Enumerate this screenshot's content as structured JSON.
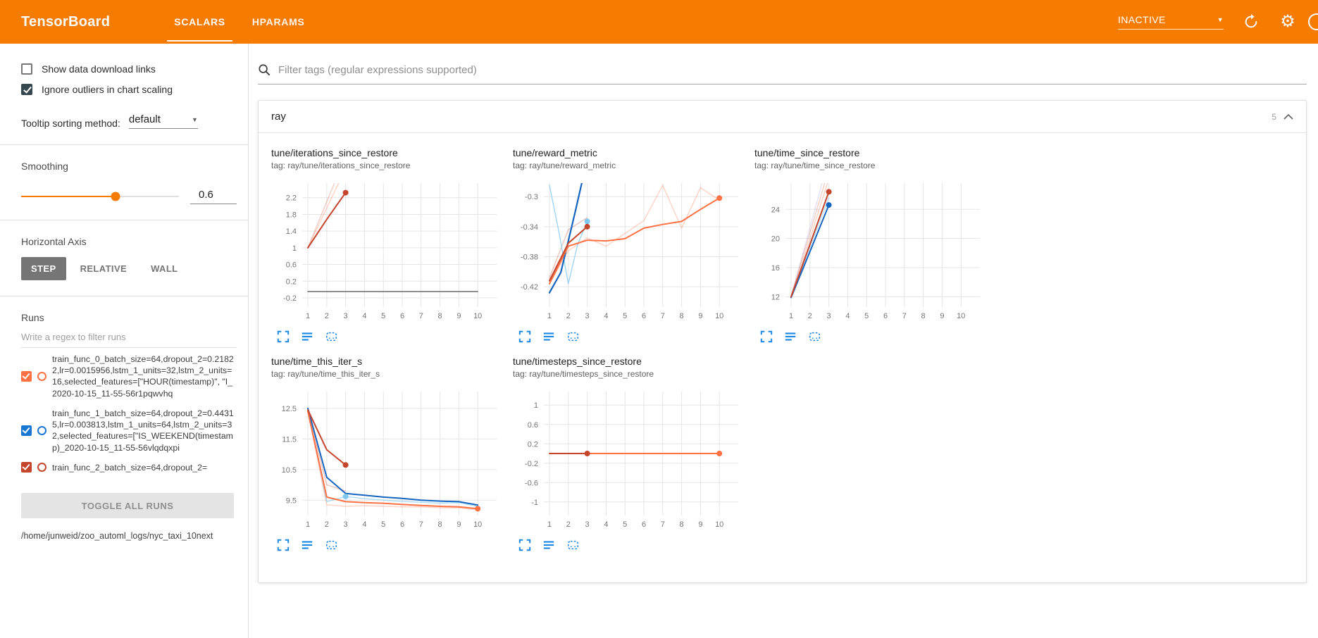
{
  "header": {
    "brand": "TensorBoard",
    "tabs": [
      {
        "label": "SCALARS",
        "active": true
      },
      {
        "label": "HPARAMS",
        "active": false
      }
    ],
    "status": "INACTIVE"
  },
  "icons": {
    "caret_down": "▼",
    "settings": "⚙",
    "refresh": "circular-arrow",
    "help": "circle-outline",
    "search": "magnifier",
    "collapse": "chevron-up",
    "chart_expand": "fullscreen-corners",
    "chart_runs": "list-lines",
    "chart_fit": "dashed-box"
  },
  "sidebar": {
    "checkboxes": [
      {
        "label": "Show data download links",
        "checked": false
      },
      {
        "label": "Ignore outliers in chart scaling",
        "checked": true
      }
    ],
    "tooltip_sort": {
      "label": "Tooltip sorting method:",
      "value": "default"
    },
    "smoothing": {
      "label": "Smoothing",
      "value": "0.6",
      "percent": 60
    },
    "horizontal_axis": {
      "label": "Horizontal Axis",
      "options": [
        "STEP",
        "RELATIVE",
        "WALL"
      ],
      "selected": "STEP"
    },
    "runs": {
      "label": "Runs",
      "filter_placeholder": "Write a regex to filter runs",
      "items": [
        {
          "name": "train_func_0_batch_size=64,dropout_2=0.21822,lr=0.0015956,lstm_1_units=32,lstm_2_units=16,selected_features=[\"HOUR(timestamp)\", \"I_2020-10-15_11-55-56r1pqwvhq",
          "color": "#ff7043",
          "checked": true
        },
        {
          "name": "train_func_1_batch_size=64,dropout_2=0.44315,lr=0.003813,lstm_1_units=64,lstm_2_units=32,selected_features=[\"IS_WEEKEND(timestamp)_2020-10-15_11-55-56vlqdqxpi",
          "color": "#1976d2",
          "checked": true
        },
        {
          "name": "train_func_2_batch_size=64,dropout_2=",
          "color": "#c5442c",
          "checked": true
        }
      ],
      "toggle_all": "TOGGLE ALL RUNS",
      "path": "/home/junweid/zoo_automl_logs/nyc_taxi_10next"
    }
  },
  "main": {
    "filter_placeholder": "Filter tags (regular expressions supported)",
    "group": {
      "name": "ray",
      "count": "5"
    }
  },
  "chart_data": [
    {
      "type": "line",
      "title": "tune/iterations_since_restore",
      "tag": "tag: ray/tune/iterations_since_restore",
      "xticks": [
        1,
        2,
        3,
        4,
        5,
        6,
        7,
        8,
        9,
        10
      ],
      "xlim": [
        0.7,
        11
      ],
      "ylim": [
        -0.42,
        2.55
      ],
      "yticks": [
        {
          "v": 2.2,
          "label": "2.2"
        },
        {
          "v": 1.8,
          "label": "1.8"
        },
        {
          "v": 1.4,
          "label": "1.4"
        },
        {
          "v": 1,
          "label": "1"
        },
        {
          "v": 0.6,
          "label": "0.6"
        },
        {
          "v": 0.2,
          "label": "0.2"
        },
        {
          "v": -0.2,
          "label": "-0.2"
        }
      ],
      "series": [
        {
          "color": "#ff7043",
          "opacity": 0.3,
          "points": [
            [
              1,
              1
            ],
            [
              2,
              1.95
            ],
            [
              3,
              2.9
            ]
          ]
        },
        {
          "color": "#c5442c",
          "opacity": 0.25,
          "points": [
            [
              1,
              1
            ],
            [
              2,
              2.1
            ],
            [
              3,
              3.2
            ]
          ]
        },
        {
          "color": "#757575",
          "width": 1.6,
          "points": [
            [
              1,
              -0.05
            ],
            [
              10,
              -0.05
            ]
          ]
        },
        {
          "color": "#c5442c",
          "width": 2,
          "points": [
            [
              1,
              1
            ],
            [
              2,
              1.68
            ],
            [
              3,
              2.32
            ]
          ],
          "dots": [
            [
              3,
              2.32
            ]
          ]
        }
      ]
    },
    {
      "type": "line",
      "title": "tune/reward_metric",
      "tag": "tag: ray/tune/reward_metric",
      "xticks": [
        1,
        2,
        3,
        4,
        5,
        6,
        7,
        8,
        9,
        10
      ],
      "xlim": [
        0.7,
        11
      ],
      "ylim": [
        -0.447,
        -0.282
      ],
      "yticks": [
        {
          "v": -0.3,
          "label": "-0.3"
        },
        {
          "v": -0.34,
          "label": "-0.34"
        },
        {
          "v": -0.38,
          "label": "-0.38"
        },
        {
          "v": -0.42,
          "label": "-0.42"
        }
      ],
      "series": [
        {
          "color": "#ff7043",
          "opacity": 0.3,
          "points": [
            [
              1,
              -0.416
            ],
            [
              2,
              -0.372
            ],
            [
              3,
              -0.355
            ],
            [
              4,
              -0.366
            ],
            [
              5,
              -0.349
            ],
            [
              6,
              -0.332
            ],
            [
              7,
              -0.285
            ],
            [
              8,
              -0.342
            ],
            [
              9,
              -0.288
            ],
            [
              10,
              -0.305
            ]
          ]
        },
        {
          "color": "#c5442c",
          "opacity": 0.3,
          "points": [
            [
              1,
              -0.408
            ],
            [
              2,
              -0.344
            ],
            [
              3,
              -0.328
            ]
          ]
        },
        {
          "color": "#7ec8f1",
          "opacity": 0.7,
          "points": [
            [
              1,
              -0.285
            ],
            [
              1.5,
              -0.347
            ],
            [
              2,
              -0.416
            ],
            [
              2.5,
              -0.363
            ],
            [
              3,
              -0.333
            ]
          ],
          "dots": [
            [
              3,
              -0.333
            ]
          ]
        },
        {
          "color": "#1565c0",
          "width": 2.2,
          "points": [
            [
              1,
              -0.428
            ],
            [
              1.6,
              -0.401
            ],
            [
              2,
              -0.359
            ],
            [
              2.4,
              -0.316
            ],
            [
              2.8,
              -0.272
            ]
          ]
        },
        {
          "color": "#ff7043",
          "width": 2,
          "points": [
            [
              1,
              -0.416
            ],
            [
              2,
              -0.366
            ],
            [
              3,
              -0.358
            ],
            [
              4,
              -0.359
            ],
            [
              5,
              -0.356
            ],
            [
              6,
              -0.342
            ],
            [
              7,
              -0.337
            ],
            [
              8,
              -0.333
            ],
            [
              9,
              -0.317
            ],
            [
              10,
              -0.302
            ]
          ],
          "dots": [
            [
              10,
              -0.302
            ]
          ]
        },
        {
          "color": "#c5442c",
          "width": 2,
          "points": [
            [
              1,
              -0.412
            ],
            [
              2,
              -0.362
            ],
            [
              3,
              -0.34
            ]
          ],
          "dots": [
            [
              3,
              -0.34
            ]
          ]
        }
      ]
    },
    {
      "type": "line",
      "title": "tune/time_since_restore",
      "tag": "tag: ray/tune/time_since_restore",
      "xticks": [
        1,
        2,
        3,
        4,
        5,
        6,
        7,
        8,
        9,
        10
      ],
      "xlim": [
        0.7,
        11
      ],
      "ylim": [
        10.6,
        27.6
      ],
      "yticks": [
        {
          "v": 24,
          "label": "24"
        },
        {
          "v": 20,
          "label": "20"
        },
        {
          "v": 16,
          "label": "16"
        },
        {
          "v": 12,
          "label": "12"
        }
      ],
      "series": [
        {
          "color": "#9575cd",
          "opacity": 0.22,
          "points": [
            [
              1,
              12.0
            ],
            [
              2,
              21.5
            ],
            [
              3,
              31
            ]
          ]
        },
        {
          "color": "#c5442c",
          "opacity": 0.25,
          "points": [
            [
              1,
              12.1
            ],
            [
              2,
              20.8
            ],
            [
              3,
              29.5
            ]
          ]
        },
        {
          "color": "#ff7043",
          "opacity": 0.3,
          "points": [
            [
              1,
              12.0
            ],
            [
              2,
              20.0
            ],
            [
              3,
              28.2
            ]
          ]
        },
        {
          "color": "#7ec8f1",
          "opacity": 0.5,
          "points": [
            [
              1,
              11.9
            ],
            [
              2,
              18.8
            ],
            [
              3,
              25.6
            ]
          ]
        },
        {
          "color": "#1565c0",
          "width": 2,
          "points": [
            [
              1,
              11.9
            ],
            [
              2,
              18.2
            ],
            [
              3,
              24.6
            ]
          ],
          "dots": [
            [
              3,
              24.6
            ]
          ]
        },
        {
          "color": "#c5442c",
          "width": 2,
          "points": [
            [
              1,
              12.0
            ],
            [
              2,
              19.2
            ],
            [
              3,
              26.4
            ]
          ],
          "dots": [
            [
              3,
              26.4
            ]
          ]
        }
      ]
    },
    {
      "type": "line",
      "title": "tune/time_this_iter_s",
      "tag": "tag: ray/tune/time_this_iter_s",
      "xticks": [
        1,
        2,
        3,
        4,
        5,
        6,
        7,
        8,
        9,
        10
      ],
      "xlim": [
        0.7,
        11
      ],
      "ylim": [
        9.0,
        13.05
      ],
      "yticks": [
        {
          "v": 12.5,
          "label": "12.5"
        },
        {
          "v": 11.5,
          "label": "11.5"
        },
        {
          "v": 10.5,
          "label": "10.5"
        },
        {
          "v": 9.5,
          "label": "9.5"
        }
      ],
      "series": [
        {
          "color": "#ff7043",
          "opacity": 0.3,
          "points": [
            [
              1,
              12.4
            ],
            [
              2,
              9.35
            ],
            [
              3,
              9.3
            ],
            [
              4,
              9.32
            ],
            [
              5,
              9.3
            ],
            [
              6,
              9.28
            ],
            [
              7,
              9.28
            ],
            [
              8,
              9.25
            ],
            [
              9,
              9.25
            ],
            [
              10,
              9.18
            ]
          ]
        },
        {
          "color": "#c5442c",
          "opacity": 0.3,
          "points": [
            [
              1,
              12.45
            ],
            [
              2,
              10.0
            ],
            [
              3,
              9.8
            ]
          ]
        },
        {
          "color": "#7ec8f1",
          "opacity": 0.6,
          "points": [
            [
              1,
              12.5
            ],
            [
              2,
              9.45
            ],
            [
              3,
              9.62
            ],
            [
              4,
              9.55
            ],
            [
              5,
              9.5
            ],
            [
              6,
              9.46
            ],
            [
              7,
              9.43
            ],
            [
              8,
              9.4
            ],
            [
              9,
              9.42
            ],
            [
              10,
              9.3
            ]
          ],
          "dots": [
            [
              3,
              9.62
            ]
          ]
        },
        {
          "color": "#1565c0",
          "width": 2,
          "points": [
            [
              1,
              12.5
            ],
            [
              2,
              10.25
            ],
            [
              3,
              9.72
            ],
            [
              4,
              9.66
            ],
            [
              5,
              9.6
            ],
            [
              6,
              9.56
            ],
            [
              7,
              9.5
            ],
            [
              8,
              9.47
            ],
            [
              9,
              9.45
            ],
            [
              10,
              9.34
            ]
          ]
        },
        {
          "color": "#ff7043",
          "width": 2,
          "points": [
            [
              1,
              12.4
            ],
            [
              2,
              9.6
            ],
            [
              3,
              9.45
            ],
            [
              4,
              9.42
            ],
            [
              5,
              9.4
            ],
            [
              6,
              9.36
            ],
            [
              7,
              9.33
            ],
            [
              8,
              9.3
            ],
            [
              9,
              9.28
            ],
            [
              10,
              9.22
            ]
          ],
          "dots": [
            [
              10,
              9.22
            ]
          ]
        },
        {
          "color": "#c5442c",
          "width": 2,
          "points": [
            [
              1,
              12.45
            ],
            [
              2,
              11.15
            ],
            [
              3,
              10.65
            ]
          ],
          "dots": [
            [
              3,
              10.65
            ]
          ]
        }
      ]
    },
    {
      "type": "line",
      "title": "tune/timesteps_since_restore",
      "tag": "tag: ray/tune/timesteps_since_restore",
      "xticks": [
        1,
        2,
        3,
        4,
        5,
        6,
        7,
        8,
        9,
        10
      ],
      "xlim": [
        0.7,
        11
      ],
      "ylim": [
        -1.28,
        1.28
      ],
      "yticks": [
        {
          "v": 1,
          "label": "1"
        },
        {
          "v": 0.6,
          "label": "0.6"
        },
        {
          "v": 0.2,
          "label": "0.2"
        },
        {
          "v": -0.2,
          "label": "-0.2"
        },
        {
          "v": -0.6,
          "label": "-0.6"
        },
        {
          "v": -1,
          "label": "-1"
        }
      ],
      "series": [
        {
          "color": "#757575",
          "width": 1.6,
          "points": [
            [
              1,
              0
            ],
            [
              10,
              0
            ]
          ]
        },
        {
          "color": "#ff7043",
          "width": 2,
          "points": [
            [
              1,
              0
            ],
            [
              10,
              0
            ]
          ],
          "dots": [
            [
              10,
              0
            ]
          ]
        },
        {
          "color": "#c5442c",
          "width": 2,
          "points": [
            [
              1,
              0
            ],
            [
              3,
              0
            ]
          ],
          "dots": [
            [
              3,
              0
            ]
          ]
        }
      ]
    }
  ]
}
